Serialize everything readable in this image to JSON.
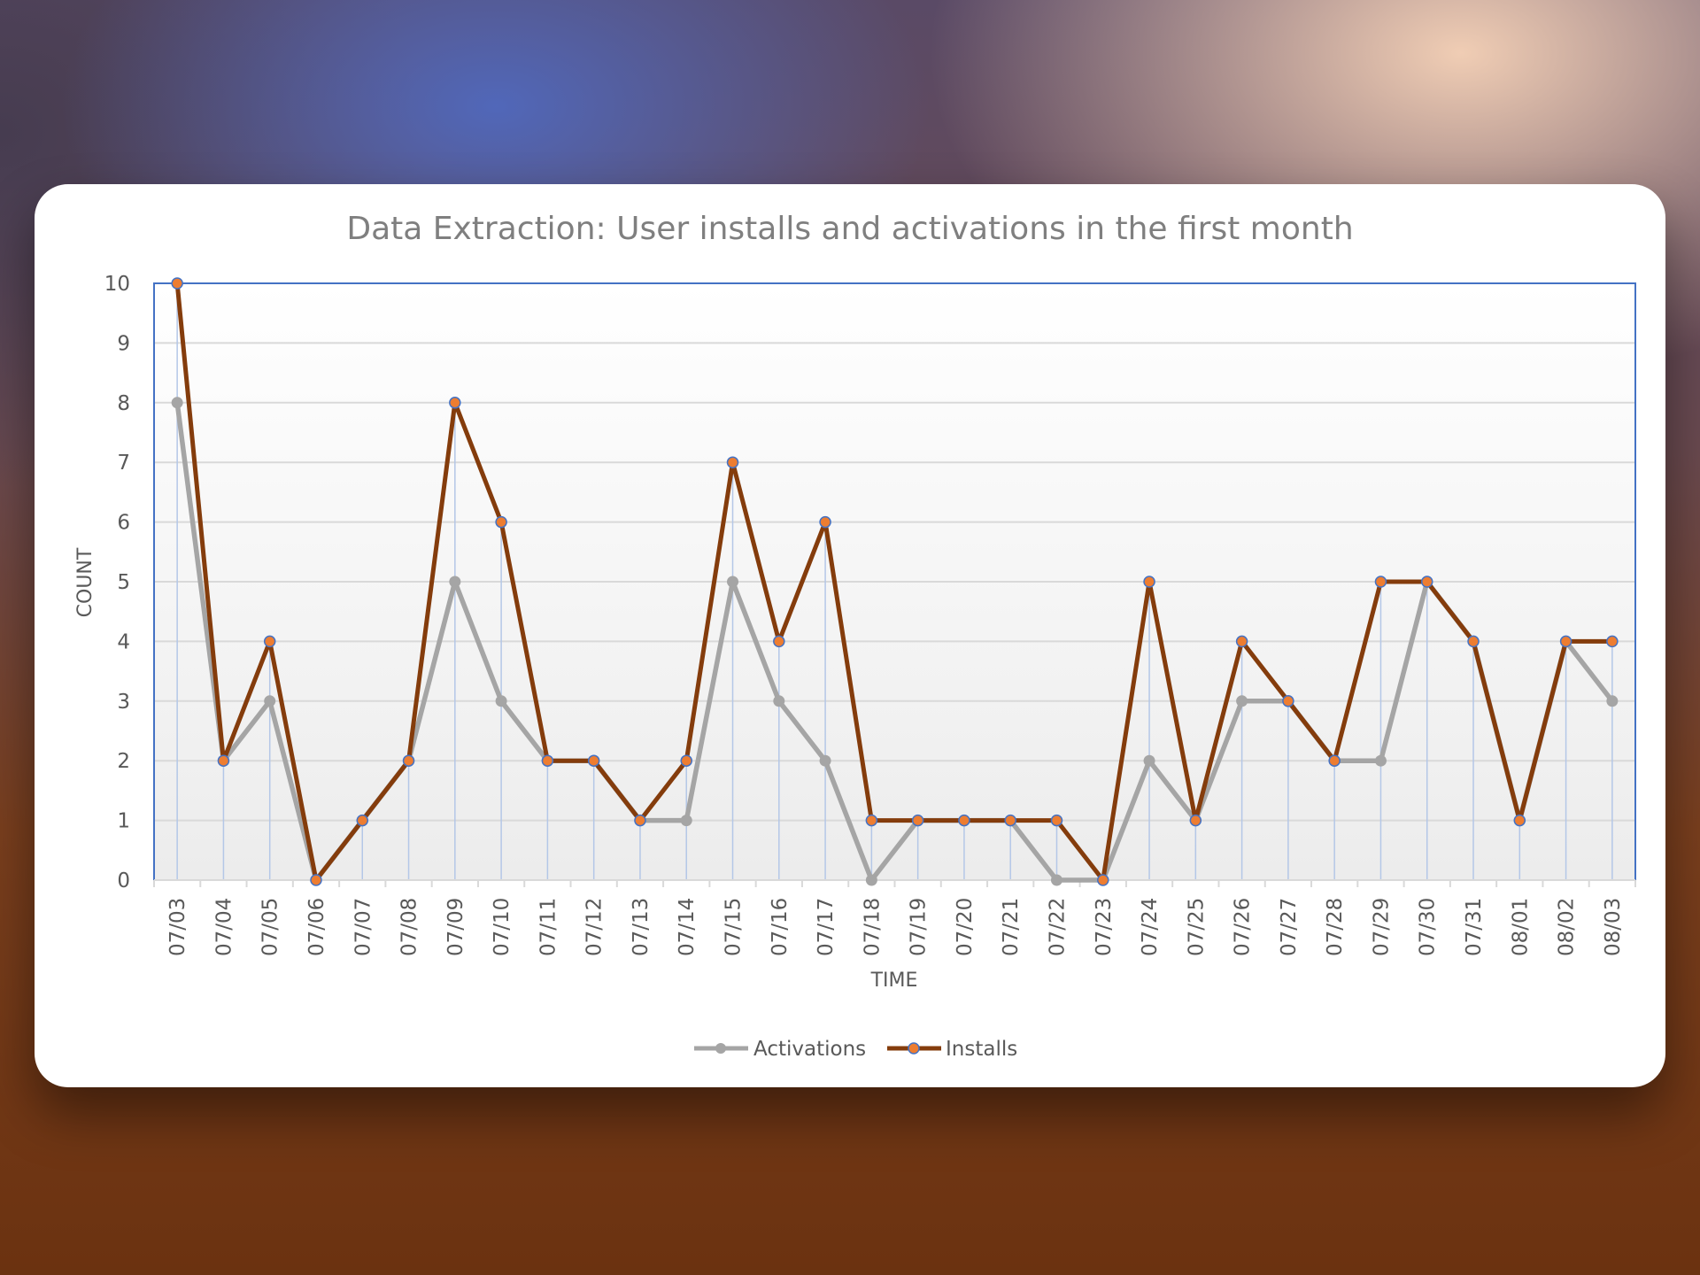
{
  "chart_data": {
    "type": "line",
    "title": "Data Extraction: User installs and activations in the first month",
    "xlabel": "TIME",
    "ylabel": "COUNT",
    "ylim": [
      0,
      10
    ],
    "yticks": [
      "0",
      "1",
      "2",
      "3",
      "4",
      "5",
      "6",
      "7",
      "8",
      "9",
      "10"
    ],
    "grid": true,
    "legend": "bottom",
    "categories": [
      "07/03",
      "07/04",
      "07/05",
      "07/06",
      "07/07",
      "07/08",
      "07/09",
      "07/10",
      "07/11",
      "07/12",
      "07/13",
      "07/14",
      "07/15",
      "07/16",
      "07/17",
      "07/18",
      "07/19",
      "07/20",
      "07/21",
      "07/22",
      "07/23",
      "07/24",
      "07/25",
      "07/26",
      "07/27",
      "07/28",
      "07/29",
      "07/30",
      "07/31",
      "08/01",
      "08/02",
      "08/03"
    ],
    "series": [
      {
        "name": "Activations",
        "color": "#a5a5a5",
        "values": [
          8,
          2,
          3,
          0,
          1,
          2,
          5,
          3,
          2,
          2,
          1,
          1,
          5,
          3,
          2,
          0,
          1,
          1,
          1,
          0,
          0,
          2,
          1,
          3,
          3,
          2,
          2,
          5,
          4,
          1,
          4,
          3
        ]
      },
      {
        "name": "Installs",
        "color": "#843c0c",
        "marker_color": "#ed7d31",
        "values": [
          10,
          2,
          4,
          0,
          1,
          2,
          8,
          6,
          2,
          2,
          1,
          2,
          7,
          4,
          6,
          1,
          1,
          1,
          1,
          1,
          0,
          5,
          1,
          4,
          3,
          2,
          5,
          5,
          4,
          1,
          4,
          4
        ]
      }
    ]
  }
}
